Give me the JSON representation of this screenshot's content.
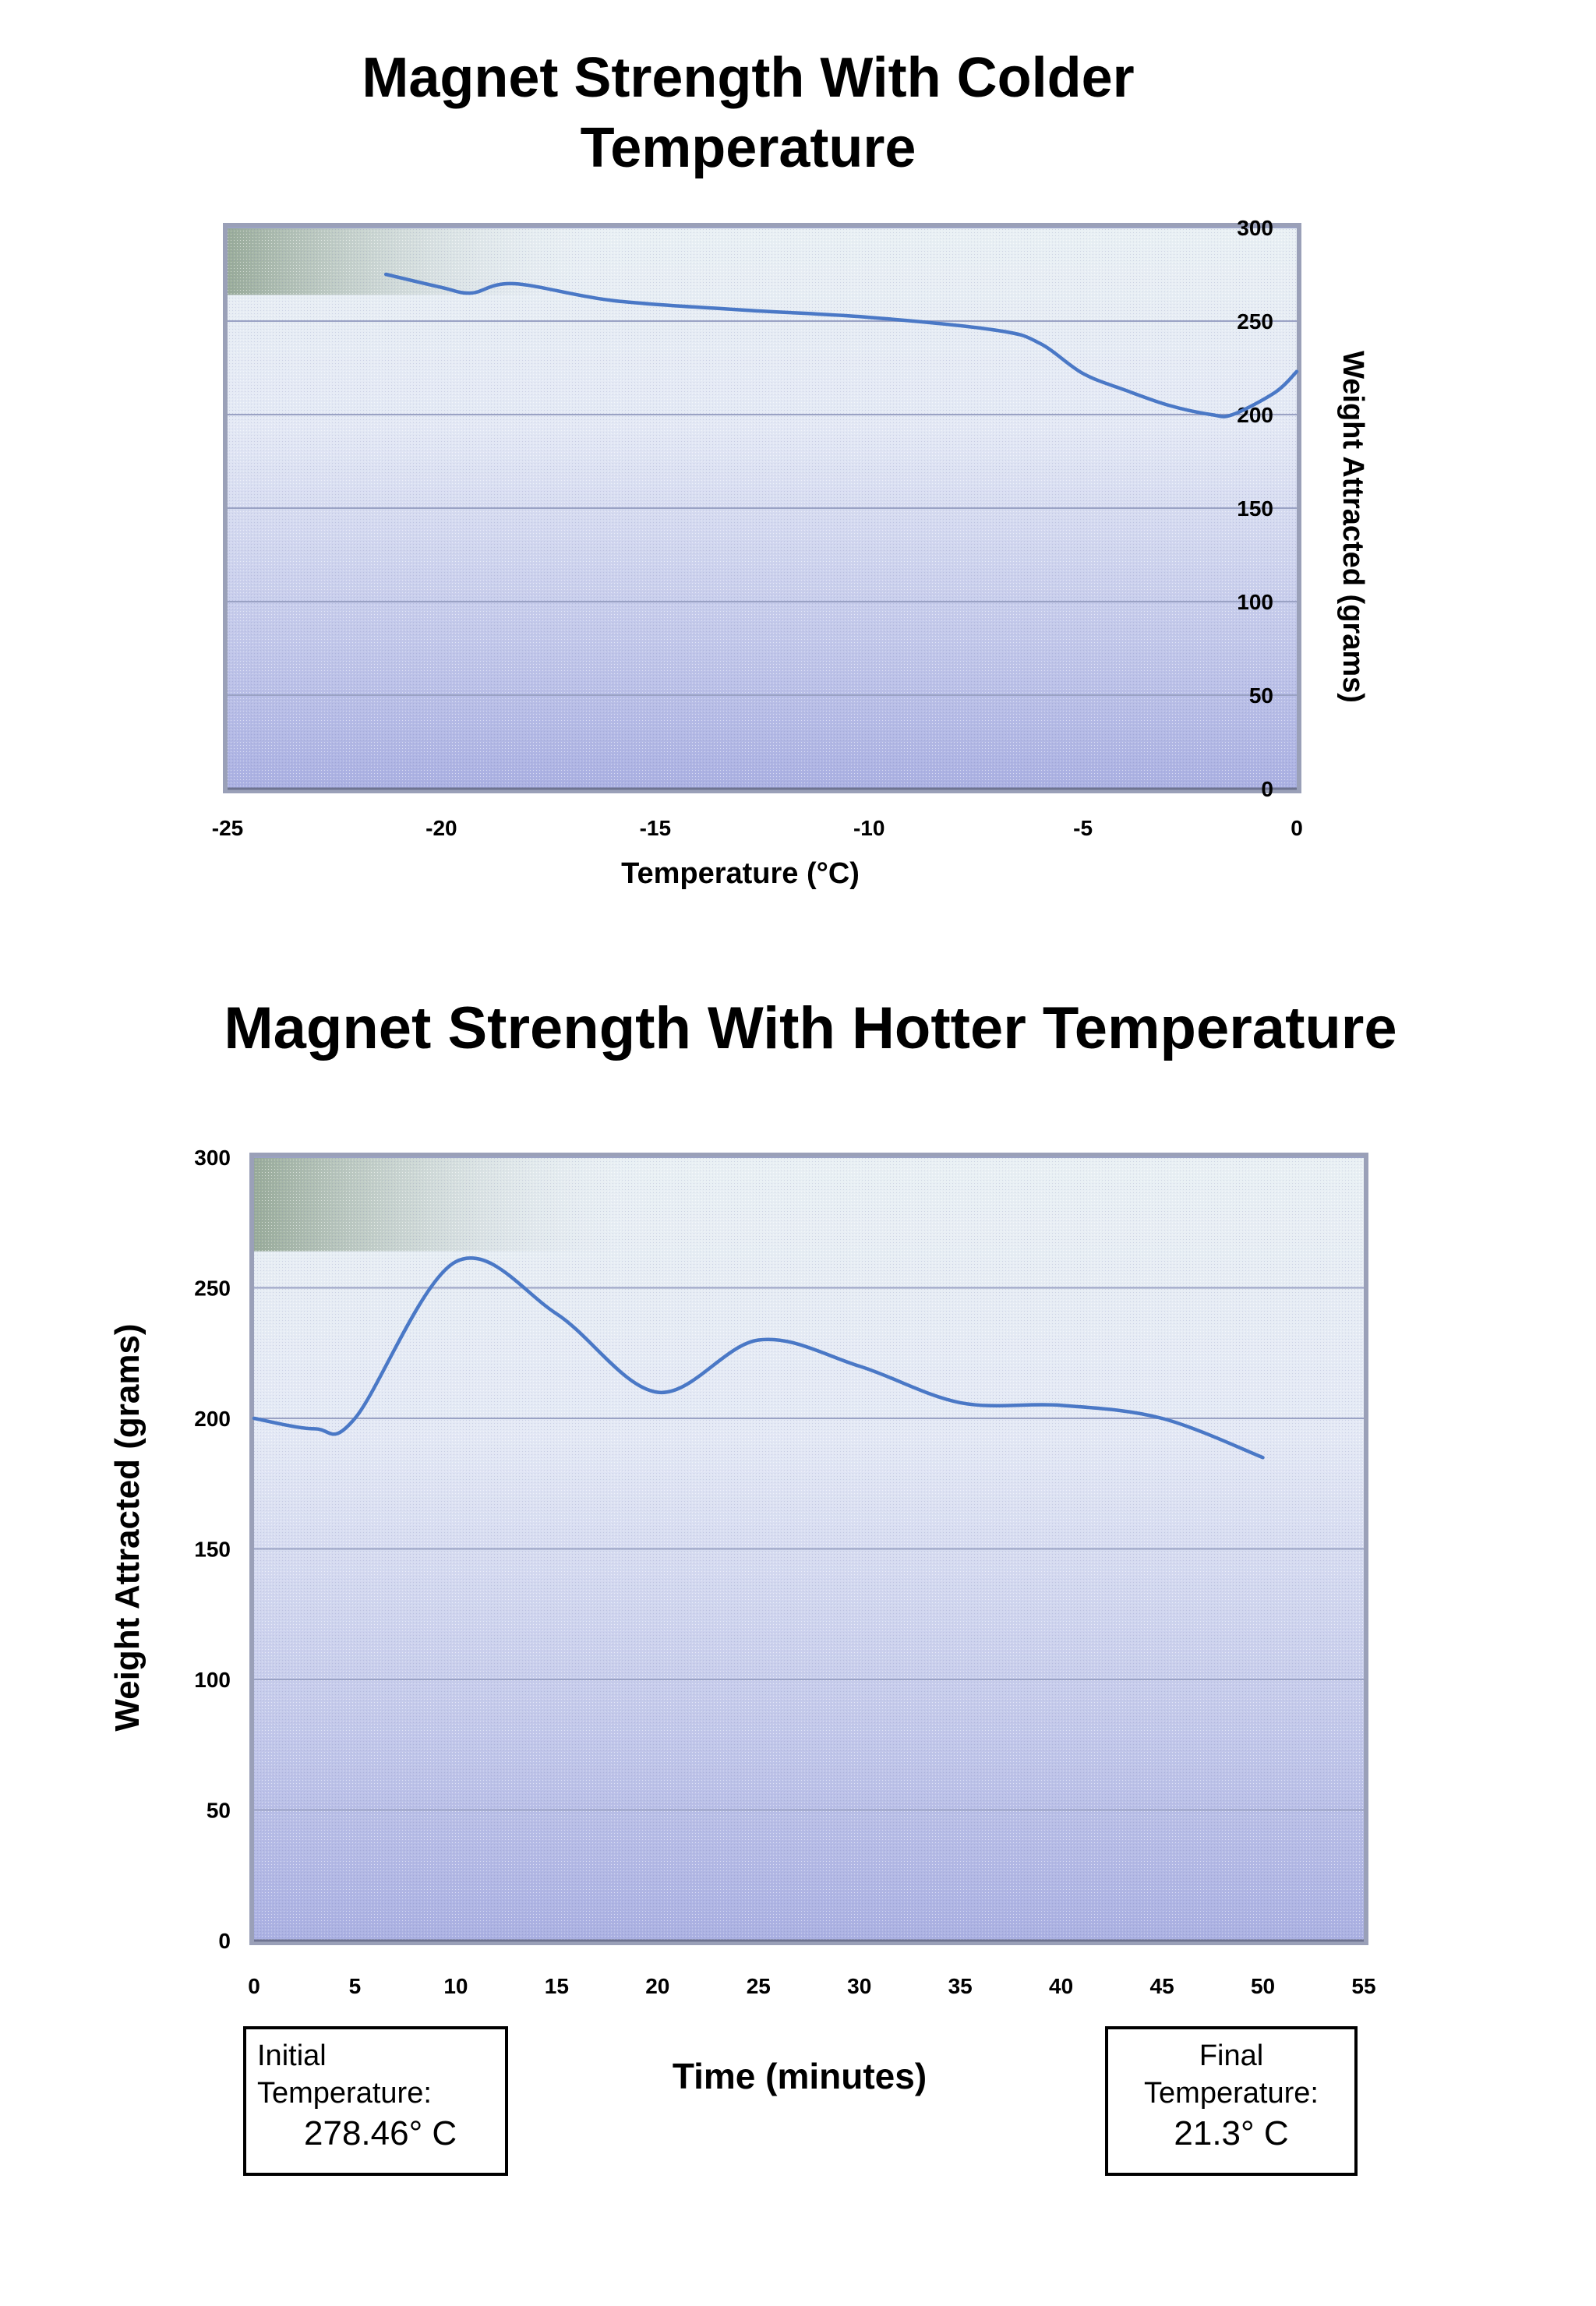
{
  "chart_data": [
    {
      "type": "line",
      "title": "Magnet Strength With Colder Temperature",
      "xlabel": "Temperature (°C)",
      "ylabel": "Weight Attracted (grams)",
      "xlim": [
        -25,
        0
      ],
      "ylim": [
        0,
        300
      ],
      "xticks": [
        -25,
        -20,
        -15,
        -10,
        -5,
        0
      ],
      "yticks": [
        0,
        50,
        100,
        150,
        200,
        250,
        300
      ],
      "grid": true,
      "series": [
        {
          "x": [
            -21.3,
            -20,
            -19.3,
            -18.3,
            -16,
            -13,
            -10,
            -7,
            -6,
            -5,
            -4,
            -3,
            -2,
            -1.5,
            -0.5,
            0
          ],
          "values": [
            275,
            268,
            265,
            270,
            261,
            256,
            252,
            245,
            238,
            222,
            213,
            205,
            200,
            200,
            212,
            223
          ]
        }
      ],
      "line_color": "#4a78c6"
    },
    {
      "type": "line",
      "title": "Magnet Strength With Hotter Temperature",
      "xlabel": "Time (minutes)",
      "ylabel": "Weight Attracted (grams)",
      "xlim": [
        0,
        55
      ],
      "ylim": [
        0,
        300
      ],
      "xticks": [
        0,
        5,
        10,
        15,
        20,
        25,
        30,
        35,
        40,
        45,
        50,
        55
      ],
      "yticks": [
        0,
        50,
        100,
        150,
        200,
        250,
        300
      ],
      "grid": true,
      "series": [
        {
          "x": [
            0,
            3,
            5,
            10,
            15,
            20,
            25,
            30,
            35,
            40,
            45,
            50
          ],
          "values": [
            200,
            196,
            200,
            260,
            240,
            210,
            230,
            220,
            206,
            205,
            200,
            185
          ]
        }
      ],
      "line_color": "#4a78c6",
      "annotations": {
        "initial_label": "Initial Temperature:",
        "initial_value": "278.46° C",
        "final_label": "Final Temperature:",
        "final_value": "21.3° C"
      }
    }
  ]
}
